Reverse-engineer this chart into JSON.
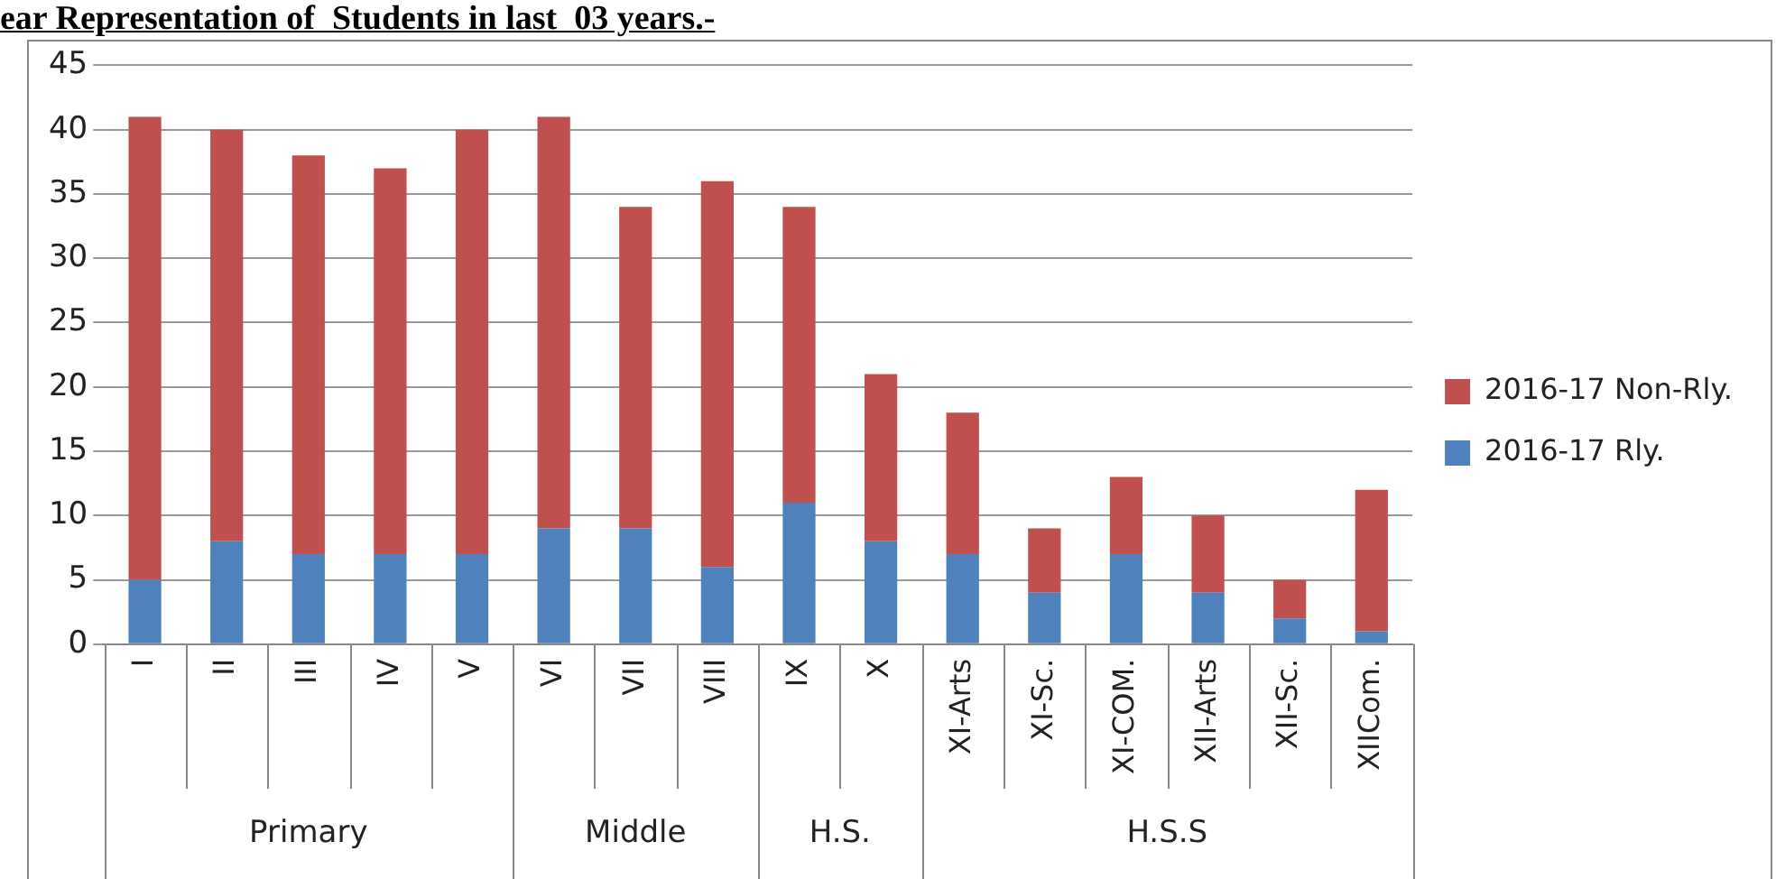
{
  "chart_data": {
    "type": "bar",
    "title": "ear Representation of  Students in last  03 years.-",
    "categories": [
      "I",
      "II",
      "III",
      "IV",
      "V",
      "VI",
      "VII",
      "VIII",
      "IX",
      "X",
      "XI-Arts",
      "XI-Sc.",
      "XI-COM.",
      "XII-Arts",
      "XII-Sc.",
      "XIICom."
    ],
    "series": [
      {
        "name": "2016-17 Rly.",
        "color": "#4f81bd",
        "values": [
          5,
          8,
          7,
          7,
          7,
          9,
          9,
          6,
          11,
          8,
          7,
          4,
          7,
          4,
          2,
          1
        ]
      },
      {
        "name": "2016-17 Non-Rly.",
        "color": "#c0504d",
        "values": [
          36,
          32,
          31,
          30,
          33,
          32,
          25,
          30,
          23,
          13,
          11,
          5,
          6,
          6,
          3,
          11
        ]
      }
    ],
    "stacked": true,
    "ylim": [
      0,
      45
    ],
    "yticks": [
      0,
      5,
      10,
      15,
      20,
      25,
      30,
      35,
      40,
      45
    ],
    "grid": "y",
    "legend": "right",
    "annotations": [
      "Primary",
      "Middle",
      "H.S.",
      "H.S.S"
    ]
  }
}
